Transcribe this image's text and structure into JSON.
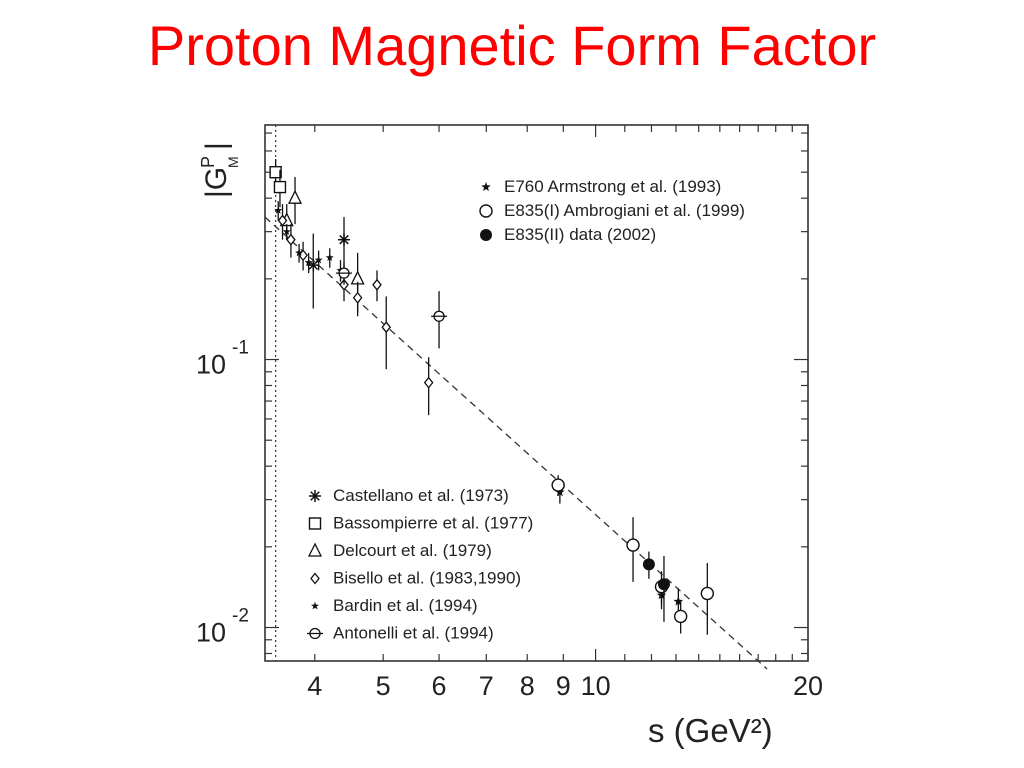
{
  "slide": {
    "title": "Proton Magnetic Form Factor"
  },
  "chart_data": {
    "type": "scatter",
    "title": "Proton Magnetic Form Factor",
    "xlabel": "s (GeV²)",
    "ylabel": "|G^p_M|",
    "x_scale": "log",
    "y_scale": "log",
    "xlim": [
      3.4,
      20
    ],
    "ylim": [
      0.0075,
      0.75
    ],
    "x_ticks": [
      {
        "value": 4,
        "label": "4"
      },
      {
        "value": 5,
        "label": "5"
      },
      {
        "value": 6,
        "label": "6"
      },
      {
        "value": 7,
        "label": "7"
      },
      {
        "value": 8,
        "label": "8"
      },
      {
        "value": 9,
        "label": "9"
      },
      {
        "value": 10,
        "label": "10"
      },
      {
        "value": 20,
        "label": "20"
      }
    ],
    "y_ticks": [
      {
        "value": 0.1,
        "base": "10",
        "exp": "-1"
      },
      {
        "value": 0.01,
        "base": "10",
        "exp": "-2"
      }
    ],
    "threshold_line": {
      "x": 3.52,
      "style": "dotted"
    },
    "fit_line": {
      "style": "dashed",
      "from": [
        3.4,
        0.34
      ],
      "to": [
        17.5,
        0.007
      ]
    },
    "legend_upper": [
      {
        "marker": "star",
        "label": "E760 Armstrong et al. (1993)"
      },
      {
        "marker": "open-circle",
        "label": "E835(I) Ambrogiani et al. (1999)"
      },
      {
        "marker": "filled-circle",
        "label": "E835(II) data (2002)"
      }
    ],
    "legend_lower": [
      {
        "marker": "asterisk",
        "label": "Castellano et al. (1973)"
      },
      {
        "marker": "open-square",
        "label": "Bassompierre et al. (1977)"
      },
      {
        "marker": "open-triangle",
        "label": "Delcourt et al. (1979)"
      },
      {
        "marker": "diamond",
        "label": "Bisello et al. (1983,1990)"
      },
      {
        "marker": "small-star",
        "label": "Bardin et al. (1994)"
      },
      {
        "marker": "cross-circle",
        "label": "Antonelli et al. (1994)"
      }
    ],
    "series": [
      {
        "name": "Castellano et al. (1973)",
        "marker": "asterisk",
        "points": [
          {
            "x": 3.98,
            "y": 0.225,
            "yerr": 0.07
          },
          {
            "x": 4.4,
            "y": 0.28,
            "yerr": 0.06
          }
        ]
      },
      {
        "name": "Bassompierre et al. (1977)",
        "marker": "open-square",
        "points": [
          {
            "x": 3.52,
            "y": 0.5,
            "yerr": 0.06
          },
          {
            "x": 3.57,
            "y": 0.44,
            "yerr": 0.07
          }
        ]
      },
      {
        "name": "Delcourt et al. (1979)",
        "marker": "open-triangle",
        "points": [
          {
            "x": 3.75,
            "y": 0.4,
            "yerr": 0.08
          },
          {
            "x": 3.65,
            "y": 0.33,
            "yerr": 0.05
          },
          {
            "x": 4.6,
            "y": 0.2,
            "yerr": 0.05
          }
        ]
      },
      {
        "name": "Bisello et al. (1983,1990)",
        "marker": "diamond",
        "points": [
          {
            "x": 3.6,
            "y": 0.33,
            "yerr": 0.05
          },
          {
            "x": 3.7,
            "y": 0.28,
            "yerr": 0.04
          },
          {
            "x": 3.85,
            "y": 0.245,
            "yerr": 0.03
          },
          {
            "x": 4.4,
            "y": 0.19,
            "yerr": 0.025
          },
          {
            "x": 4.6,
            "y": 0.17,
            "yerr": 0.025
          },
          {
            "x": 4.9,
            "y": 0.19,
            "yerr": 0.025
          },
          {
            "x": 5.05,
            "y": 0.132,
            "yerr": 0.04
          },
          {
            "x": 5.8,
            "y": 0.082,
            "yerr": 0.02
          }
        ]
      },
      {
        "name": "Bardin et al. (1994)",
        "marker": "small-star",
        "points": [
          {
            "x": 3.55,
            "y": 0.36,
            "yerr": 0.03
          },
          {
            "x": 3.65,
            "y": 0.3,
            "yerr": 0.02
          },
          {
            "x": 3.8,
            "y": 0.25,
            "yerr": 0.02
          },
          {
            "x": 3.92,
            "y": 0.23,
            "yerr": 0.02
          },
          {
            "x": 4.05,
            "y": 0.235,
            "yerr": 0.02
          },
          {
            "x": 4.2,
            "y": 0.24,
            "yerr": 0.02
          },
          {
            "x": 4.35,
            "y": 0.215,
            "yerr": 0.02
          }
        ]
      },
      {
        "name": "Antonelli et al. (1994)",
        "marker": "cross-circle",
        "points": [
          {
            "x": 4.4,
            "y": 0.21,
            "yerr": 0.02
          },
          {
            "x": 6.0,
            "y": 0.145,
            "yerr": 0.035
          }
        ]
      },
      {
        "name": "E760 Armstrong et al. (1993)",
        "marker": "star",
        "points": [
          {
            "x": 8.9,
            "y": 0.032,
            "yerr": 0.003
          },
          {
            "x": 12.4,
            "y": 0.0132,
            "yerr": 0.0015
          },
          {
            "x": 13.1,
            "y": 0.0125,
            "yerr": 0.0015
          }
        ]
      },
      {
        "name": "E835(I) Ambrogiani et al. (1999)",
        "marker": "open-circle",
        "points": [
          {
            "x": 8.85,
            "y": 0.034,
            "yerr": 0.003
          },
          {
            "x": 11.3,
            "y": 0.0203,
            "yerr": 0.0055
          },
          {
            "x": 12.4,
            "y": 0.0142,
            "yerr": 0.002
          },
          {
            "x": 13.2,
            "y": 0.011,
            "yerr": 0.0015
          },
          {
            "x": 14.4,
            "y": 0.0134,
            "yerr": 0.004
          }
        ]
      },
      {
        "name": "E835(II) data (2002)",
        "marker": "filled-circle",
        "points": [
          {
            "x": 11.9,
            "y": 0.0172,
            "yerr": 0.002
          },
          {
            "x": 12.5,
            "y": 0.0145,
            "yerr": 0.004
          }
        ]
      }
    ]
  }
}
